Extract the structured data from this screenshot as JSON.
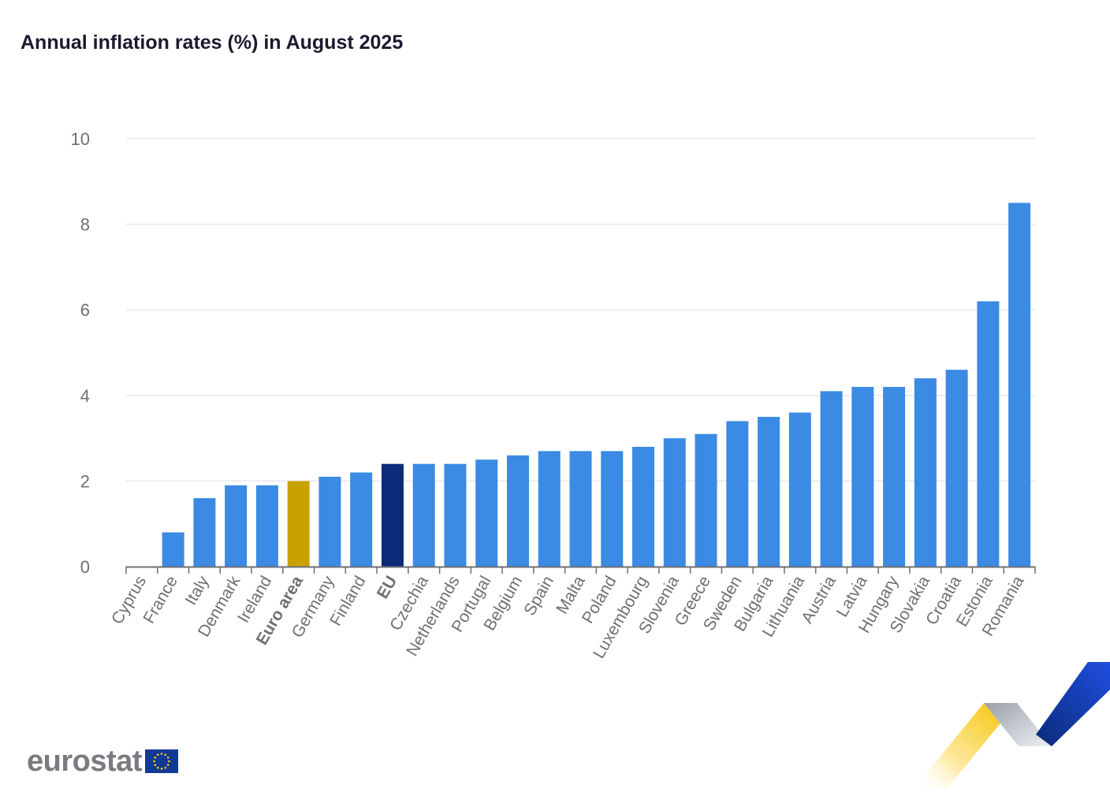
{
  "chart_data": {
    "type": "bar",
    "title": "Annual inflation rates (%) in August 2025",
    "xlabel": "",
    "ylabel": "",
    "ylim": [
      0,
      10
    ],
    "yticks": [
      0,
      2,
      4,
      6,
      8,
      10
    ],
    "grid": true,
    "legend": "none",
    "categories": [
      "Cyprus",
      "France",
      "Italy",
      "Denmark",
      "Ireland",
      "Euro area",
      "Germany",
      "Finland",
      "EU",
      "Czechia",
      "Netherlands",
      "Portugal",
      "Belgium",
      "Spain",
      "Malta",
      "Poland",
      "Luxembourg",
      "Slovenia",
      "Greece",
      "Sweden",
      "Bulgaria",
      "Lithuania",
      "Austria",
      "Latvia",
      "Hungary",
      "Slovakia",
      "Croatia",
      "Estonia",
      "Romania"
    ],
    "values": [
      0.0,
      0.8,
      1.6,
      1.9,
      1.9,
      2.0,
      2.1,
      2.2,
      2.4,
      2.4,
      2.4,
      2.5,
      2.6,
      2.7,
      2.7,
      2.7,
      2.8,
      3.0,
      3.1,
      3.4,
      3.5,
      3.6,
      4.1,
      4.2,
      4.2,
      4.4,
      4.6,
      6.2,
      8.5
    ],
    "highlight": {
      "Euro area": "#c9a200",
      "EU": "#0b2a78"
    },
    "bold_labels": [
      "Euro area",
      "EU"
    ]
  },
  "colors": {
    "bar": "#3b8ae3",
    "euro_area": "#c9a200",
    "eu": "#0b2a78",
    "grid": "#e6e8f3",
    "axis": "#6f6f75",
    "tick_label": "#6f6f75",
    "title": "#1b1b2f"
  },
  "branding": {
    "logo_text": "eurostat",
    "flag_icon": "eu-flag-icon",
    "ribbon_icon": "eurostat-ribbon-icon"
  }
}
